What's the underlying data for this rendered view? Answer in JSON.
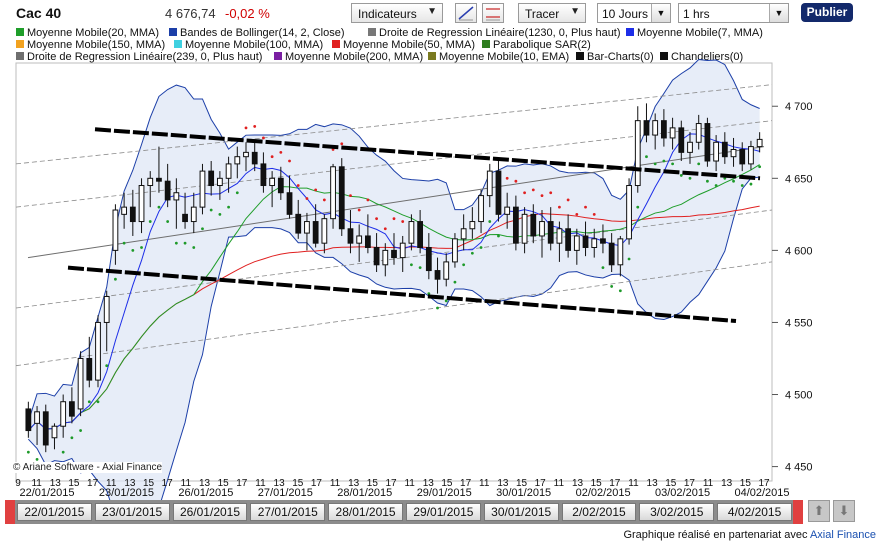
{
  "header": {
    "symbol": "Cac 40",
    "price": "4 676,74",
    "change": "-0,02 %",
    "indicators_label": "Indicateurs",
    "tracer_label": "Tracer",
    "period_value": "10 Jours",
    "interval_value": "1 hrs",
    "publish_label": "Publier"
  },
  "legend": [
    {
      "label": "Moyenne Mobile(20, MMA)",
      "color": "#1f9e2a"
    },
    {
      "label": "Bandes de Bollinger(14, 2, Close)",
      "color": "#1c3fa8"
    },
    {
      "label": "Droite de Regression Linéaire(1230, 0, Plus haut)",
      "color": "#777777"
    },
    {
      "label": "Moyenne Mobile(7, MMA)",
      "color": "#1d2ee8"
    },
    {
      "label": "Moyenne Mobile(150, MMA)",
      "color": "#f2a21f"
    },
    {
      "label": "Moyenne Mobile(100, MMA)",
      "color": "#3fd0e0"
    },
    {
      "label": "Moyenne Mobile(50, MMA)",
      "color": "#e02020"
    },
    {
      "label": "Parabolique SAR(2)",
      "color": "#2e7d1e"
    },
    {
      "label": "Droite de Regression Linéaire(239, 0, Plus haut)",
      "color": "#6e6e6e"
    },
    {
      "label": "Moyenne Mobile(200, MMA)",
      "color": "#7a1fa2"
    },
    {
      "label": "Moyenne Mobile(10, EMA)",
      "color": "#7a7a20"
    },
    {
      "label": "Bar-Charts(0)",
      "color": "#111111"
    },
    {
      "label": "Chandeliers(0)",
      "color": "#111111"
    }
  ],
  "y_axis_ticks": [
    "4 700",
    "4 650",
    "4 600",
    "4 550",
    "4 500",
    "4 450"
  ],
  "x_axis": {
    "hour_labels": [
      "9",
      "11",
      "13",
      "15",
      "17",
      "11",
      "13",
      "15",
      "17",
      "11",
      "13",
      "15",
      "17",
      "11",
      "13",
      "15",
      "17",
      "11",
      "13",
      "15",
      "17",
      "11",
      "13",
      "15",
      "17",
      "11",
      "13",
      "15",
      "17",
      "11",
      "13",
      "15",
      "17",
      "11",
      "13",
      "15",
      "17",
      "11",
      "13",
      "15",
      "17"
    ],
    "day_labels": [
      "22/01/2015",
      "23/01/2015",
      "26/01/2015",
      "27/01/2015",
      "28/01/2015",
      "29/01/2015",
      "30/01/2015",
      "02/02/2015",
      "03/02/2015",
      "04/02/2015"
    ]
  },
  "date_navigator": [
    "22/01/2015",
    "23/01/2015",
    "26/01/2015",
    "27/01/2015",
    "28/01/2015",
    "29/01/2015",
    "30/01/2015",
    "2/02/2015",
    "3/02/2015",
    "4/02/2015"
  ],
  "copyright": "© Ariane Software - Axial Finance",
  "footer": {
    "prefix": "Graphique réalisé en partenariat avec ",
    "brand": "Axial Finance"
  },
  "chart_data": {
    "type": "candlestick",
    "ylim": [
      4440,
      4730
    ],
    "candles": [
      {
        "o": 4490,
        "h": 4495,
        "l": 4470,
        "c": 4475
      },
      {
        "o": 4480,
        "h": 4492,
        "l": 4465,
        "c": 4488
      },
      {
        "o": 4488,
        "h": 4493,
        "l": 4460,
        "c": 4465
      },
      {
        "o": 4470,
        "h": 4480,
        "l": 4462,
        "c": 4478
      },
      {
        "o": 4478,
        "h": 4500,
        "l": 4470,
        "c": 4495
      },
      {
        "o": 4495,
        "h": 4505,
        "l": 4480,
        "c": 4485
      },
      {
        "o": 4490,
        "h": 4530,
        "l": 4485,
        "c": 4525
      },
      {
        "o": 4525,
        "h": 4540,
        "l": 4505,
        "c": 4510
      },
      {
        "o": 4510,
        "h": 4555,
        "l": 4505,
        "c": 4550
      },
      {
        "o": 4550,
        "h": 4572,
        "l": 4530,
        "c": 4568
      },
      {
        "o": 4600,
        "h": 4632,
        "l": 4590,
        "c": 4628
      },
      {
        "o": 4625,
        "h": 4640,
        "l": 4615,
        "c": 4630
      },
      {
        "o": 4630,
        "h": 4642,
        "l": 4610,
        "c": 4620
      },
      {
        "o": 4620,
        "h": 4650,
        "l": 4612,
        "c": 4645
      },
      {
        "o": 4645,
        "h": 4655,
        "l": 4630,
        "c": 4650
      },
      {
        "o": 4650,
        "h": 4672,
        "l": 4640,
        "c": 4648
      },
      {
        "o": 4648,
        "h": 4660,
        "l": 4630,
        "c": 4635
      },
      {
        "o": 4635,
        "h": 4650,
        "l": 4615,
        "c": 4640
      },
      {
        "o": 4625,
        "h": 4640,
        "l": 4615,
        "c": 4620
      },
      {
        "o": 4620,
        "h": 4640,
        "l": 4612,
        "c": 4630
      },
      {
        "o": 4630,
        "h": 4660,
        "l": 4625,
        "c": 4655
      },
      {
        "o": 4655,
        "h": 4662,
        "l": 4638,
        "c": 4645
      },
      {
        "o": 4645,
        "h": 4655,
        "l": 4635,
        "c": 4650
      },
      {
        "o": 4650,
        "h": 4665,
        "l": 4640,
        "c": 4660
      },
      {
        "o": 4660,
        "h": 4672,
        "l": 4650,
        "c": 4665
      },
      {
        "o": 4665,
        "h": 4675,
        "l": 4655,
        "c": 4668
      },
      {
        "o": 4668,
        "h": 4676,
        "l": 4655,
        "c": 4660
      },
      {
        "o": 4660,
        "h": 4668,
        "l": 4640,
        "c": 4645
      },
      {
        "o": 4645,
        "h": 4655,
        "l": 4630,
        "c": 4650
      },
      {
        "o": 4650,
        "h": 4658,
        "l": 4635,
        "c": 4640
      },
      {
        "o": 4640,
        "h": 4652,
        "l": 4622,
        "c": 4625
      },
      {
        "o": 4625,
        "h": 4635,
        "l": 4608,
        "c": 4612
      },
      {
        "o": 4612,
        "h": 4626,
        "l": 4600,
        "c": 4620
      },
      {
        "o": 4620,
        "h": 4632,
        "l": 4602,
        "c": 4605
      },
      {
        "o": 4605,
        "h": 4625,
        "l": 4598,
        "c": 4622
      },
      {
        "o": 4622,
        "h": 4660,
        "l": 4615,
        "c": 4658
      },
      {
        "o": 4658,
        "h": 4664,
        "l": 4610,
        "c": 4615
      },
      {
        "o": 4615,
        "h": 4628,
        "l": 4598,
        "c": 4605
      },
      {
        "o": 4605,
        "h": 4618,
        "l": 4592,
        "c": 4610
      },
      {
        "o": 4610,
        "h": 4625,
        "l": 4598,
        "c": 4602
      },
      {
        "o": 4602,
        "h": 4612,
        "l": 4585,
        "c": 4590
      },
      {
        "o": 4590,
        "h": 4605,
        "l": 4582,
        "c": 4600
      },
      {
        "o": 4600,
        "h": 4612,
        "l": 4590,
        "c": 4595
      },
      {
        "o": 4595,
        "h": 4610,
        "l": 4585,
        "c": 4605
      },
      {
        "o": 4605,
        "h": 4625,
        "l": 4600,
        "c": 4620
      },
      {
        "o": 4620,
        "h": 4628,
        "l": 4598,
        "c": 4602
      },
      {
        "o": 4602,
        "h": 4612,
        "l": 4580,
        "c": 4586
      },
      {
        "o": 4586,
        "h": 4595,
        "l": 4570,
        "c": 4580
      },
      {
        "o": 4580,
        "h": 4598,
        "l": 4575,
        "c": 4592
      },
      {
        "o": 4592,
        "h": 4612,
        "l": 4588,
        "c": 4608
      },
      {
        "o": 4608,
        "h": 4625,
        "l": 4600,
        "c": 4615
      },
      {
        "o": 4615,
        "h": 4630,
        "l": 4608,
        "c": 4620
      },
      {
        "o": 4620,
        "h": 4642,
        "l": 4612,
        "c": 4638
      },
      {
        "o": 4638,
        "h": 4660,
        "l": 4630,
        "c": 4655
      },
      {
        "o": 4655,
        "h": 4662,
        "l": 4620,
        "c": 4625
      },
      {
        "o": 4625,
        "h": 4640,
        "l": 4615,
        "c": 4630
      },
      {
        "o": 4630,
        "h": 4638,
        "l": 4600,
        "c": 4605
      },
      {
        "o": 4605,
        "h": 4630,
        "l": 4598,
        "c": 4625
      },
      {
        "o": 4625,
        "h": 4632,
        "l": 4605,
        "c": 4610
      },
      {
        "o": 4610,
        "h": 4628,
        "l": 4595,
        "c": 4620
      },
      {
        "o": 4620,
        "h": 4630,
        "l": 4600,
        "c": 4605
      },
      {
        "o": 4605,
        "h": 4620,
        "l": 4592,
        "c": 4615
      },
      {
        "o": 4615,
        "h": 4625,
        "l": 4595,
        "c": 4600
      },
      {
        "o": 4600,
        "h": 4615,
        "l": 4590,
        "c": 4610
      },
      {
        "o": 4610,
        "h": 4620,
        "l": 4596,
        "c": 4602
      },
      {
        "o": 4602,
        "h": 4615,
        "l": 4595,
        "c": 4608
      },
      {
        "o": 4608,
        "h": 4618,
        "l": 4598,
        "c": 4605
      },
      {
        "o": 4605,
        "h": 4612,
        "l": 4585,
        "c": 4590
      },
      {
        "o": 4590,
        "h": 4610,
        "l": 4582,
        "c": 4608
      },
      {
        "o": 4608,
        "h": 4650,
        "l": 4604,
        "c": 4645
      },
      {
        "o": 4645,
        "h": 4700,
        "l": 4640,
        "c": 4690
      },
      {
        "o": 4690,
        "h": 4702,
        "l": 4675,
        "c": 4680
      },
      {
        "o": 4680,
        "h": 4695,
        "l": 4670,
        "c": 4690
      },
      {
        "o": 4690,
        "h": 4698,
        "l": 4672,
        "c": 4678
      },
      {
        "o": 4678,
        "h": 4692,
        "l": 4670,
        "c": 4685
      },
      {
        "o": 4685,
        "h": 4690,
        "l": 4662,
        "c": 4668
      },
      {
        "o": 4668,
        "h": 4682,
        "l": 4660,
        "c": 4675
      },
      {
        "o": 4675,
        "h": 4694,
        "l": 4670,
        "c": 4688
      },
      {
        "o": 4688,
        "h": 4692,
        "l": 4658,
        "c": 4662
      },
      {
        "o": 4662,
        "h": 4680,
        "l": 4655,
        "c": 4675
      },
      {
        "o": 4675,
        "h": 4682,
        "l": 4660,
        "c": 4665
      },
      {
        "o": 4665,
        "h": 4678,
        "l": 4658,
        "c": 4670
      },
      {
        "o": 4670,
        "h": 4675,
        "l": 4655,
        "c": 4660
      },
      {
        "o": 4660,
        "h": 4676,
        "l": 4656,
        "c": 4672
      },
      {
        "o": 4672,
        "h": 4682,
        "l": 4668,
        "c": 4677
      }
    ],
    "annotations": {
      "upper_channel": [
        [
          4684
        ],
        [
          4652
        ]
      ],
      "lower_channel": [
        [
          4588
        ],
        [
          4551
        ]
      ]
    }
  }
}
